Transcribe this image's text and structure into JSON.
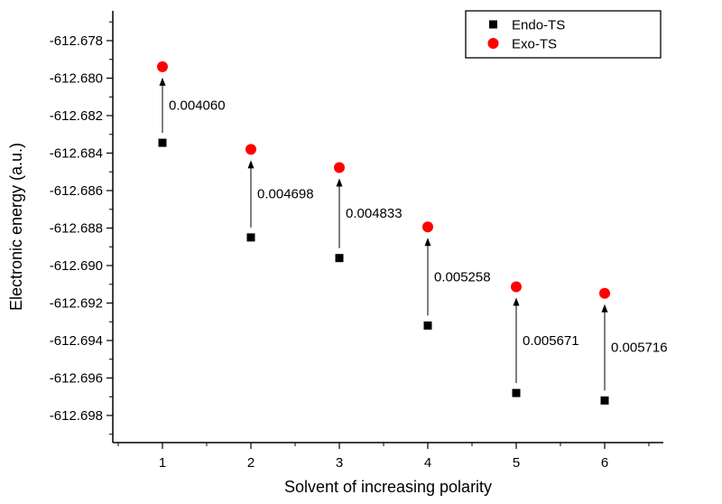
{
  "chart_data": {
    "type": "scatter",
    "xlabel": "Solvent of increasing polarity",
    "ylabel": "Electronic energy (a.u.)",
    "x": [
      1,
      2,
      3,
      4,
      5,
      6
    ],
    "xticks": [
      1,
      2,
      3,
      4,
      5,
      6
    ],
    "yticks": [
      -612.678,
      -612.68,
      -612.682,
      -612.684,
      -612.686,
      -612.688,
      -612.69,
      -612.692,
      -612.694,
      -612.696,
      -612.698
    ],
    "ylim": [
      -612.699,
      -612.677
    ],
    "series": [
      {
        "name": "Endo-TS",
        "marker": "square",
        "color": "#000000",
        "values": [
          -612.68345,
          -612.6885,
          -612.6896,
          -612.6932,
          -612.6968,
          -612.6972
        ]
      },
      {
        "name": "Exo-TS",
        "marker": "circle",
        "color": "#ff0000",
        "values": [
          -612.67939,
          -612.6838,
          -612.68477,
          -612.68794,
          -612.69113,
          -612.69148
        ]
      }
    ],
    "gap_annotations": [
      "0.004060",
      "0.004698",
      "0.004833",
      "0.005258",
      "0.005671",
      "0.005716"
    ],
    "legend": {
      "position": "top-right",
      "entries": [
        "Endo-TS",
        "Exo-TS"
      ]
    },
    "grid": false
  }
}
